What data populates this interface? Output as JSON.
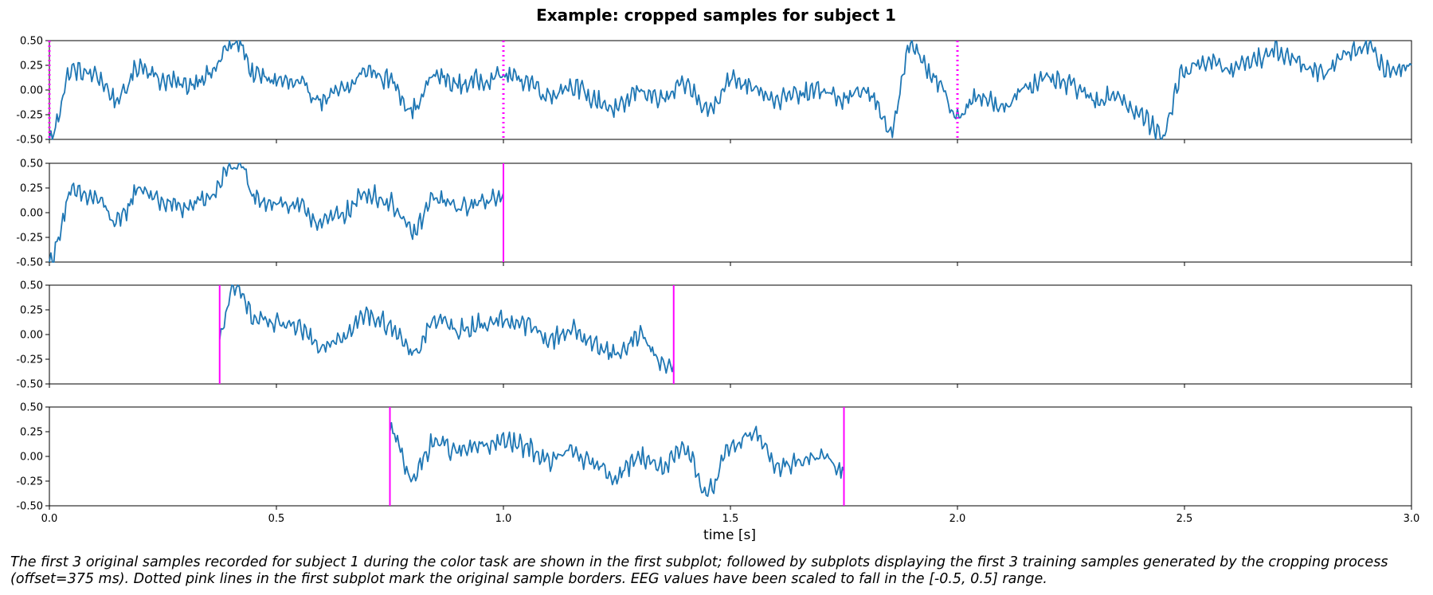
{
  "chart_data": {
    "type": "line",
    "title": "Example: cropped samples for subject 1",
    "xlabel": "time [s]",
    "ylabel": "",
    "xlim": [
      0.0,
      3.0
    ],
    "ylim": [
      -0.5,
      0.5
    ],
    "grid": false,
    "shared_x_axis": true,
    "xticks": [
      "0.0",
      "0.5",
      "1.0",
      "1.5",
      "2.0",
      "2.5",
      "3.0"
    ],
    "yticks": [
      "0.50",
      "0.25",
      "0.00",
      "-0.25",
      "-0.50"
    ],
    "line_color": "#1f77b4",
    "marker_color": "#ff00ff",
    "subplots": [
      {
        "x_range": [
          0.0,
          3.0
        ],
        "x": [
          0.0,
          0.05,
          0.1,
          0.15,
          0.2,
          0.25,
          0.3,
          0.35,
          0.4,
          0.42,
          0.45,
          0.5,
          0.55,
          0.6,
          0.65,
          0.7,
          0.75,
          0.8,
          0.85,
          0.9,
          0.95,
          1.0,
          1.05,
          1.1,
          1.15,
          1.2,
          1.25,
          1.3,
          1.35,
          1.4,
          1.45,
          1.5,
          1.55,
          1.6,
          1.65,
          1.7,
          1.75,
          1.8,
          1.85,
          1.9,
          1.95,
          2.0,
          2.05,
          2.1,
          2.15,
          2.2,
          2.25,
          2.3,
          2.35,
          2.4,
          2.45,
          2.5,
          2.55,
          2.6,
          2.65,
          2.7,
          2.75,
          2.8,
          2.85,
          2.9,
          2.95,
          3.0
        ],
        "y": [
          -0.5,
          0.2,
          0.15,
          -0.1,
          0.25,
          0.1,
          0.05,
          0.15,
          0.45,
          0.48,
          0.15,
          0.1,
          0.05,
          -0.1,
          0.0,
          0.2,
          0.1,
          -0.2,
          0.15,
          0.05,
          0.1,
          0.15,
          0.1,
          -0.05,
          0.05,
          -0.1,
          -0.2,
          0.0,
          -0.1,
          0.05,
          -0.2,
          0.1,
          0.05,
          -0.1,
          -0.05,
          0.0,
          -0.1,
          0.0,
          -0.4,
          0.45,
          0.1,
          -0.25,
          -0.05,
          -0.2,
          0.05,
          0.1,
          0.05,
          -0.1,
          -0.05,
          -0.25,
          -0.45,
          0.2,
          0.3,
          0.2,
          0.3,
          0.4,
          0.3,
          0.15,
          0.35,
          0.45,
          0.2,
          0.25
        ],
        "markers": [
          {
            "x": 0.0,
            "style": "dotted"
          },
          {
            "x": 1.0,
            "style": "dotted"
          },
          {
            "x": 2.0,
            "style": "dotted"
          }
        ]
      },
      {
        "x_range": [
          0.0,
          1.0
        ],
        "x": [
          0.0,
          0.05,
          0.1,
          0.15,
          0.2,
          0.25,
          0.3,
          0.35,
          0.4,
          0.42,
          0.45,
          0.5,
          0.55,
          0.6,
          0.65,
          0.7,
          0.75,
          0.8,
          0.85,
          0.9,
          0.95,
          1.0
        ],
        "y": [
          -0.5,
          0.2,
          0.15,
          -0.1,
          0.25,
          0.1,
          0.05,
          0.15,
          0.45,
          0.48,
          0.15,
          0.1,
          0.05,
          -0.1,
          0.0,
          0.2,
          0.1,
          -0.2,
          0.15,
          0.05,
          0.1,
          0.2
        ],
        "markers": [
          {
            "x": 1.0,
            "style": "solid"
          }
        ]
      },
      {
        "x_range": [
          0.375,
          1.375
        ],
        "x": [
          0.375,
          0.4,
          0.42,
          0.45,
          0.5,
          0.55,
          0.6,
          0.65,
          0.7,
          0.75,
          0.8,
          0.85,
          0.9,
          0.95,
          1.0,
          1.05,
          1.1,
          1.15,
          1.2,
          1.25,
          1.3,
          1.35,
          1.375
        ],
        "y": [
          -0.05,
          0.4,
          0.48,
          0.15,
          0.1,
          0.05,
          -0.1,
          0.0,
          0.2,
          0.1,
          -0.2,
          0.15,
          0.05,
          0.1,
          0.15,
          0.1,
          -0.05,
          0.05,
          -0.1,
          -0.2,
          0.0,
          -0.3,
          -0.3
        ],
        "markers": [
          {
            "x": 0.375,
            "style": "solid"
          },
          {
            "x": 1.375,
            "style": "solid"
          }
        ]
      },
      {
        "x_range": [
          0.75,
          1.75
        ],
        "x": [
          0.75,
          0.8,
          0.85,
          0.9,
          0.95,
          1.0,
          1.05,
          1.1,
          1.15,
          1.2,
          1.25,
          1.3,
          1.35,
          1.4,
          1.45,
          1.5,
          1.55,
          1.6,
          1.65,
          1.7,
          1.75
        ],
        "y": [
          0.25,
          -0.2,
          0.15,
          0.05,
          0.1,
          0.15,
          0.1,
          -0.05,
          0.05,
          -0.1,
          -0.2,
          0.0,
          -0.1,
          0.05,
          -0.35,
          0.1,
          0.25,
          -0.1,
          -0.05,
          0.0,
          -0.15
        ],
        "markers": [
          {
            "x": 0.75,
            "style": "solid"
          },
          {
            "x": 1.75,
            "style": "solid"
          }
        ]
      }
    ]
  },
  "caption": "The first 3 original samples recorded for subject 1 during the color task are shown in the first subplot; followed by subplots displaying the first 3 training samples generated by the cropping process (offset=375 ms). Dotted pink lines in the first subplot mark the original sample borders. EEG values have been scaled to fall in the [-0.5, 0.5] range."
}
